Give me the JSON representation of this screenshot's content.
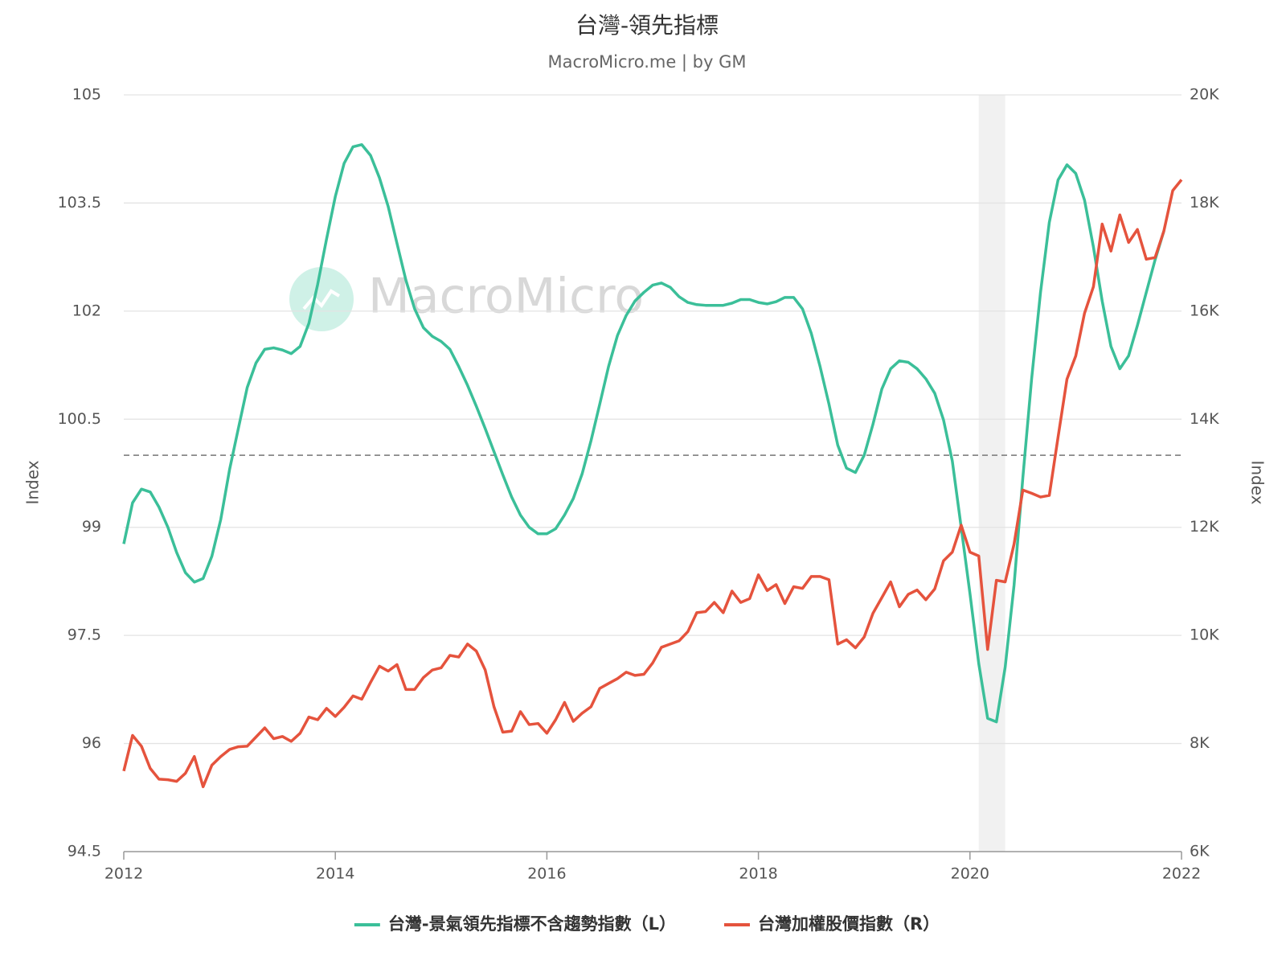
{
  "chart_data": {
    "type": "line",
    "title": "台灣-領先指標",
    "subtitle": "MacroMicro.me | by GM",
    "watermark": "MacroMicro",
    "y_label": "Index",
    "y2_label": "Index",
    "xlim": [
      2012,
      2022
    ],
    "xticks": [
      2012,
      2014,
      2016,
      2018,
      2020,
      2022
    ],
    "ylim": [
      94.5,
      105
    ],
    "yticks": [
      94.5,
      96,
      97.5,
      99,
      100.5,
      102,
      103.5,
      105
    ],
    "y2lim": [
      6000,
      20000
    ],
    "y2ticks": [
      {
        "value": 6000,
        "label": "6K"
      },
      {
        "value": 8000,
        "label": "8K"
      },
      {
        "value": 10000,
        "label": "10K"
      },
      {
        "value": 12000,
        "label": "12K"
      },
      {
        "value": 14000,
        "label": "14K"
      },
      {
        "value": 16000,
        "label": "16K"
      },
      {
        "value": 18000,
        "label": "18K"
      },
      {
        "value": 20000,
        "label": "20K"
      }
    ],
    "grid": true,
    "reference_y": 100,
    "shaded_x": [
      2020.083,
      2020.333
    ],
    "legend": "bottom",
    "x": [
      2012,
      2012.083,
      2012.167,
      2012.25,
      2012.333,
      2012.417,
      2012.5,
      2012.583,
      2012.667,
      2012.75,
      2012.833,
      2012.917,
      2013,
      2013.083,
      2013.167,
      2013.25,
      2013.333,
      2013.417,
      2013.5,
      2013.583,
      2013.667,
      2013.75,
      2013.833,
      2013.917,
      2014,
      2014.083,
      2014.167,
      2014.25,
      2014.333,
      2014.417,
      2014.5,
      2014.583,
      2014.667,
      2014.75,
      2014.833,
      2014.917,
      2015,
      2015.083,
      2015.167,
      2015.25,
      2015.333,
      2015.417,
      2015.5,
      2015.583,
      2015.667,
      2015.75,
      2015.833,
      2015.917,
      2016,
      2016.083,
      2016.167,
      2016.25,
      2016.333,
      2016.417,
      2016.5,
      2016.583,
      2016.667,
      2016.75,
      2016.833,
      2016.917,
      2017,
      2017.083,
      2017.167,
      2017.25,
      2017.333,
      2017.417,
      2017.5,
      2017.583,
      2017.667,
      2017.75,
      2017.833,
      2017.917,
      2018,
      2018.083,
      2018.167,
      2018.25,
      2018.333,
      2018.417,
      2018.5,
      2018.583,
      2018.667,
      2018.75,
      2018.833,
      2018.917,
      2019,
      2019.083,
      2019.167,
      2019.25,
      2019.333,
      2019.417,
      2019.5,
      2019.583,
      2019.667,
      2019.75,
      2019.833,
      2019.917,
      2020,
      2020.083,
      2020.167,
      2020.25,
      2020.333,
      2020.417,
      2020.5,
      2020.583,
      2020.667,
      2020.75,
      2020.833,
      2020.917,
      2021,
      2021.083,
      2021.167,
      2021.25,
      2021.333,
      2021.417,
      2021.5,
      2021.583,
      2021.667,
      2021.75,
      2021.833,
      2021.917,
      2022
    ],
    "series": [
      {
        "name": "台灣-景氣領先指標不含趨勢指數（L）",
        "color": "#3bbf99",
        "axis": "y",
        "values": [
          98.77,
          99.34,
          99.53,
          99.49,
          99.28,
          99.0,
          98.65,
          98.37,
          98.24,
          98.29,
          98.6,
          99.11,
          99.8,
          100.37,
          100.94,
          101.28,
          101.47,
          101.49,
          101.46,
          101.41,
          101.51,
          101.83,
          102.37,
          103.0,
          103.59,
          104.05,
          104.28,
          104.31,
          104.16,
          103.85,
          103.45,
          102.94,
          102.43,
          102.03,
          101.77,
          101.65,
          101.58,
          101.47,
          101.23,
          100.97,
          100.68,
          100.37,
          100.05,
          99.73,
          99.42,
          99.17,
          99.0,
          98.91,
          98.91,
          98.98,
          99.17,
          99.4,
          99.74,
          100.2,
          100.71,
          101.23,
          101.66,
          101.94,
          102.14,
          102.26,
          102.36,
          102.39,
          102.33,
          102.2,
          102.12,
          102.09,
          102.08,
          102.08,
          102.08,
          102.11,
          102.16,
          102.16,
          102.12,
          102.1,
          102.13,
          102.19,
          102.19,
          102.03,
          101.69,
          101.23,
          100.71,
          100.14,
          99.82,
          99.76,
          100.0,
          100.43,
          100.92,
          101.2,
          101.31,
          101.29,
          101.2,
          101.06,
          100.86,
          100.49,
          99.92,
          99.0,
          98.08,
          97.11,
          96.35,
          96.3,
          97.06,
          98.2,
          99.69,
          101.06,
          102.26,
          103.23,
          103.82,
          104.03,
          103.91,
          103.54,
          102.89,
          102.14,
          101.51,
          101.2,
          101.38,
          101.8,
          102.26,
          102.71,
          103.11,
          null,
          null
        ]
      },
      {
        "name": "台灣加權股價指數（R）",
        "color": "#e5533d",
        "axis": "y2",
        "values": [
          7490,
          8150,
          7950,
          7540,
          7340,
          7330,
          7300,
          7450,
          7760,
          7200,
          7600,
          7760,
          7890,
          7940,
          7950,
          8120,
          8290,
          8090,
          8130,
          8040,
          8190,
          8490,
          8440,
          8650,
          8500,
          8670,
          8880,
          8820,
          9130,
          9430,
          9340,
          9460,
          9000,
          9000,
          9220,
          9360,
          9400,
          9630,
          9600,
          9840,
          9710,
          9360,
          8680,
          8210,
          8230,
          8590,
          8350,
          8370,
          8190,
          8440,
          8760,
          8410,
          8560,
          8680,
          9020,
          9110,
          9200,
          9320,
          9260,
          9280,
          9490,
          9780,
          9840,
          9900,
          10070,
          10420,
          10440,
          10610,
          10420,
          10820,
          10610,
          10680,
          11120,
          10830,
          10940,
          10590,
          10900,
          10870,
          11090,
          11090,
          11030,
          9840,
          9920,
          9770,
          9970,
          10410,
          10700,
          10990,
          10530,
          10760,
          10840,
          10660,
          10860,
          11380,
          11540,
          12040,
          11540,
          11470,
          9740,
          11020,
          10990,
          11690,
          12690,
          12630,
          12560,
          12590,
          13670,
          14740,
          15170,
          15960,
          16450,
          17610,
          17110,
          17780,
          17270,
          17510,
          16960,
          16990,
          17480,
          18230,
          18430
        ]
      }
    ]
  }
}
